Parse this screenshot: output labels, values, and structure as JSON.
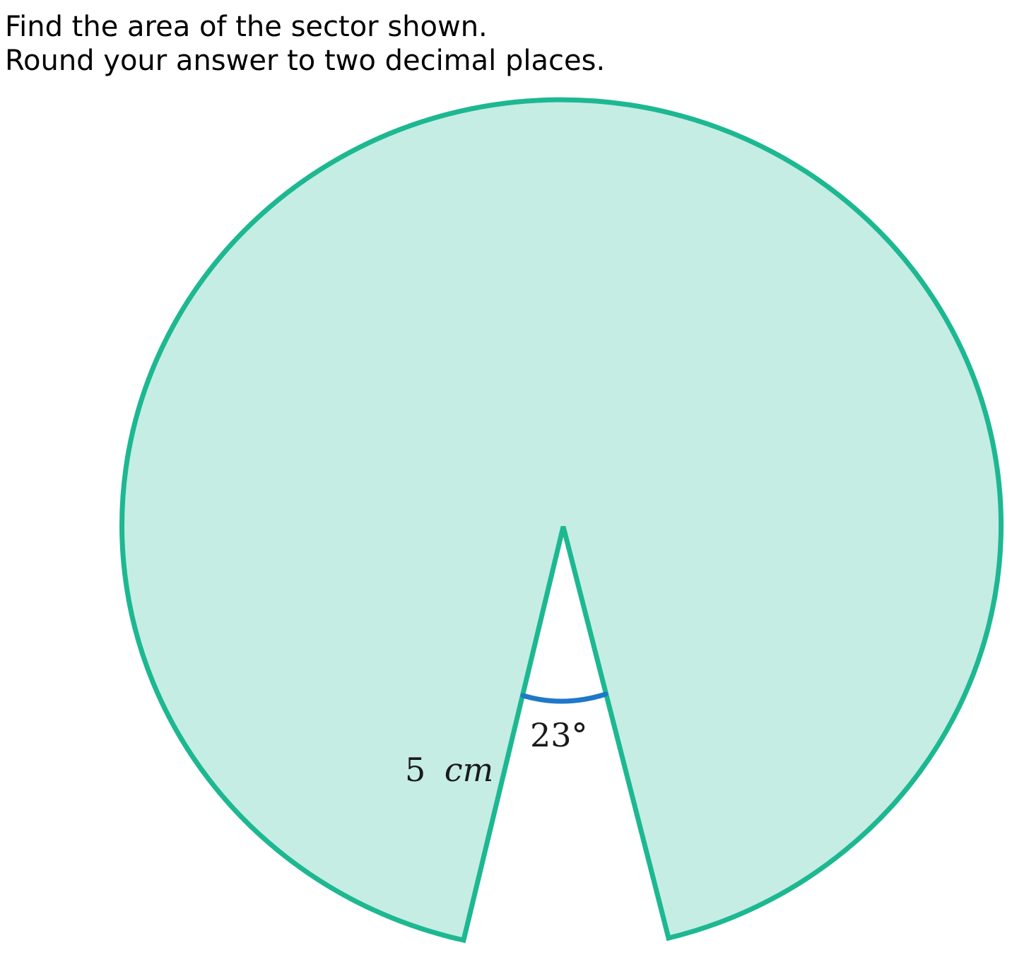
{
  "question": {
    "line1": "Find the area of the sector shown.",
    "line2": "Round your answer to two decimal places."
  },
  "diagram": {
    "radius_value": "5",
    "radius_unit": "cm",
    "angle_label": "23°",
    "gap_angle_degrees": 23,
    "sector_fill_color": "#c5ede4",
    "sector_stroke_color": "#1db891",
    "angle_arc_color": "#1f78c8"
  }
}
